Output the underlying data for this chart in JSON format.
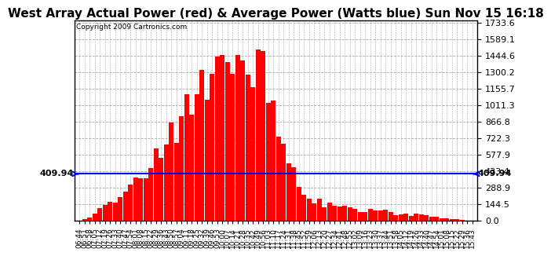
{
  "title": "West Array Actual Power (red) & Average Power (Watts blue) Sun Nov 15 16:18",
  "copyright": "Copyright 2009 Cartronics.com",
  "average_power": 409.94,
  "ymax": 1733.6,
  "ymin": 0.0,
  "yticks": [
    0.0,
    144.5,
    288.9,
    433.4,
    577.9,
    722.3,
    866.8,
    1011.3,
    1155.7,
    1300.2,
    1444.6,
    1589.1,
    1733.6
  ],
  "background_color": "#ffffff",
  "fill_color": "#ff0000",
  "line_color": "#0000ff",
  "title_fontsize": 11,
  "avg_label": "409.94"
}
